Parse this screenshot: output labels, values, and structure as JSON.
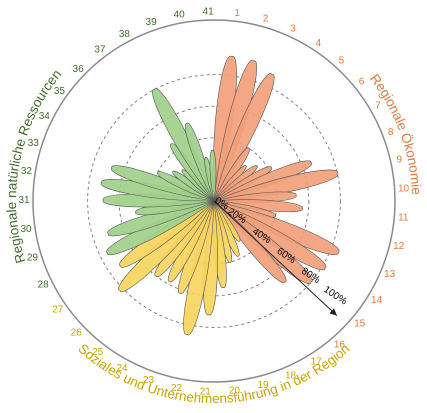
{
  "chart_data": {
    "type": "polar-petal",
    "rlim": [
      0,
      100
    ],
    "radial_ticks": [
      "0%",
      "20%",
      "40%",
      "60%",
      "80%",
      "100%"
    ],
    "grid": true,
    "colors": {
      "oekonomie": "#f2a07a",
      "oekonomie_label": "#e07a3c",
      "soziales": "#f7d45e",
      "soziales_label": "#c9a400",
      "ressourcen": "#9fd08a",
      "ressourcen_label": "#3f6b2a",
      "outline": "#8a8a8a"
    },
    "groups": [
      {
        "key": "oekonomie",
        "name": "Regionale Ökonomie",
        "indicators": [
          1,
          16
        ]
      },
      {
        "key": "soziales",
        "name": "Soziales und Unternehmensführung in der Region",
        "indicators": [
          17,
          27
        ]
      },
      {
        "key": "ressourcen",
        "name": "Regionale natürliche Ressourcen",
        "indicators": [
          28,
          41
        ]
      }
    ],
    "indicators": [
      "1",
      "2",
      "3",
      "4",
      "5",
      "6",
      "7",
      "8",
      "9",
      "10",
      "11",
      "12",
      "13",
      "14",
      "15",
      "16",
      "17",
      "18",
      "19",
      "20",
      "21",
      "22",
      "23",
      "24",
      "25",
      "26",
      "27",
      "28",
      "29",
      "30",
      "31",
      "32",
      "33",
      "34",
      "35",
      "36",
      "37",
      "38",
      "39",
      "40",
      "41"
    ],
    "values": [
      92,
      92,
      88,
      40,
      30,
      35,
      42,
      66,
      80,
      52,
      56,
      40,
      85,
      82,
      80,
      68,
      30,
      38,
      40,
      55,
      72,
      86,
      62,
      58,
      60,
      82,
      72,
      75,
      70,
      50,
      70,
      72,
      68,
      40,
      32,
      28,
      45,
      80,
      52,
      28,
      32
    ]
  }
}
